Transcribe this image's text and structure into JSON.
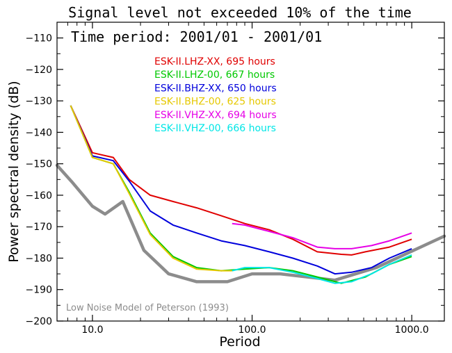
{
  "chart_data": {
    "type": "line",
    "title": "Signal level not exceeded 10% of the time",
    "subtitle": "Time period: 2001/01 - 2001/01",
    "xlabel": "Period",
    "ylabel": "Power spectral density (dB)",
    "x_scale": "log",
    "xlim": [
      6.0,
      1600.0
    ],
    "ylim": [
      -200,
      -105
    ],
    "x_ticks": [
      10,
      100,
      1000
    ],
    "x_tick_labels": [
      "10.0",
      "100.0",
      "1000.0"
    ],
    "y_ticks": [
      -200,
      -190,
      -180,
      -170,
      -160,
      -150,
      -140,
      -130,
      -120,
      -110
    ],
    "y_tick_labels": [
      "−200",
      "−190",
      "−180",
      "−170",
      "−160",
      "−150",
      "−140",
      "−130",
      "−120",
      "−110"
    ],
    "grid": false,
    "legend_position": "top-center",
    "series": [
      {
        "name": "ESK-II.LHZ-XX, 695 hours",
        "color": "#e00000",
        "x": [
          7.3,
          10.0,
          13.5,
          17.0,
          23.0,
          32.0,
          45.0,
          64.0,
          90.0,
          128.0,
          180.0,
          256.0,
          362.0,
          420.0,
          512.0,
          724.0,
          1000.0
        ],
        "y": [
          -131.5,
          -146.5,
          -148.0,
          -155.0,
          -160.0,
          -162.0,
          -164.0,
          -166.5,
          -169.0,
          -171.0,
          -174.0,
          -178.0,
          -178.8,
          -179.0,
          -178.0,
          -176.5,
          -174.0
        ]
      },
      {
        "name": "ESK-II.LHZ-00, 667 hours",
        "color": "#00c800",
        "x": [
          7.3,
          10.0,
          13.5,
          17.0,
          23.0,
          32.0,
          45.0,
          64.0,
          90.0,
          128.0,
          180.0,
          256.0,
          362.0,
          512.0,
          724.0,
          1000.0
        ],
        "y": [
          -131.5,
          -148.0,
          -150.0,
          -159.0,
          -172.0,
          -179.5,
          -183.0,
          -184.0,
          -183.5,
          -183.0,
          -184.0,
          -186.0,
          -188.0,
          -186.0,
          -182.0,
          -179.5
        ]
      },
      {
        "name": "ESK-II.BHZ-XX, 650 hours",
        "color": "#0000dc",
        "x": [
          7.3,
          10.0,
          13.5,
          17.0,
          23.0,
          32.0,
          45.0,
          64.0,
          90.0,
          128.0,
          180.0,
          256.0,
          330.0,
          420.0,
          560.0,
          724.0,
          1000.0
        ],
        "y": [
          -131.5,
          -147.5,
          -149.0,
          -155.5,
          -165.0,
          -169.5,
          -172.0,
          -174.5,
          -176.0,
          -178.0,
          -180.0,
          -182.5,
          -185.0,
          -184.5,
          -183.0,
          -180.0,
          -177.0
        ]
      },
      {
        "name": "ESK-II.BHZ-00, 625 hours",
        "color": "#e6c800",
        "x": [
          7.3,
          10.0,
          13.5,
          17.0,
          23.0,
          32.0,
          45.0,
          64.0,
          75.0
        ],
        "y": [
          -131.5,
          -148.0,
          -150.0,
          -159.5,
          -172.5,
          -180.0,
          -183.5,
          -184.0,
          -184.0
        ]
      },
      {
        "name": "ESK-II.VHZ-XX, 694 hours",
        "color": "#e600e6",
        "x": [
          75.0,
          90.0,
          128.0,
          180.0,
          256.0,
          330.0,
          420.0,
          560.0,
          724.0,
          1000.0
        ],
        "y": [
          -169.0,
          -169.5,
          -171.5,
          -173.5,
          -176.5,
          -177.0,
          -177.0,
          -176.0,
          -174.5,
          -172.0
        ]
      },
      {
        "name": "ESK-II.VHZ-00, 666 hours",
        "color": "#00e6e6",
        "x": [
          75.0,
          90.0,
          128.0,
          180.0,
          256.0,
          330.0,
          420.0,
          560.0,
          724.0,
          1000.0
        ],
        "y": [
          -184.0,
          -183.0,
          -183.0,
          -184.5,
          -186.5,
          -188.0,
          -187.5,
          -185.0,
          -182.0,
          -179.0
        ]
      }
    ],
    "reference_model": {
      "name": "Low Noise Model of Peterson (1993)",
      "color": "#8c8c8c",
      "x": [
        6.0,
        7.5,
        10.0,
        12.0,
        15.5,
        21.0,
        30.0,
        45.0,
        70.0,
        100.0,
        150.0,
        330.0,
        600.0,
        1600.0
      ],
      "y": [
        -150.5,
        -156.0,
        -163.5,
        -166.0,
        -162.0,
        -177.5,
        -185.0,
        -187.5,
        -187.5,
        -185.0,
        -185.0,
        -187.0,
        -183.0,
        -173.0
      ]
    }
  }
}
